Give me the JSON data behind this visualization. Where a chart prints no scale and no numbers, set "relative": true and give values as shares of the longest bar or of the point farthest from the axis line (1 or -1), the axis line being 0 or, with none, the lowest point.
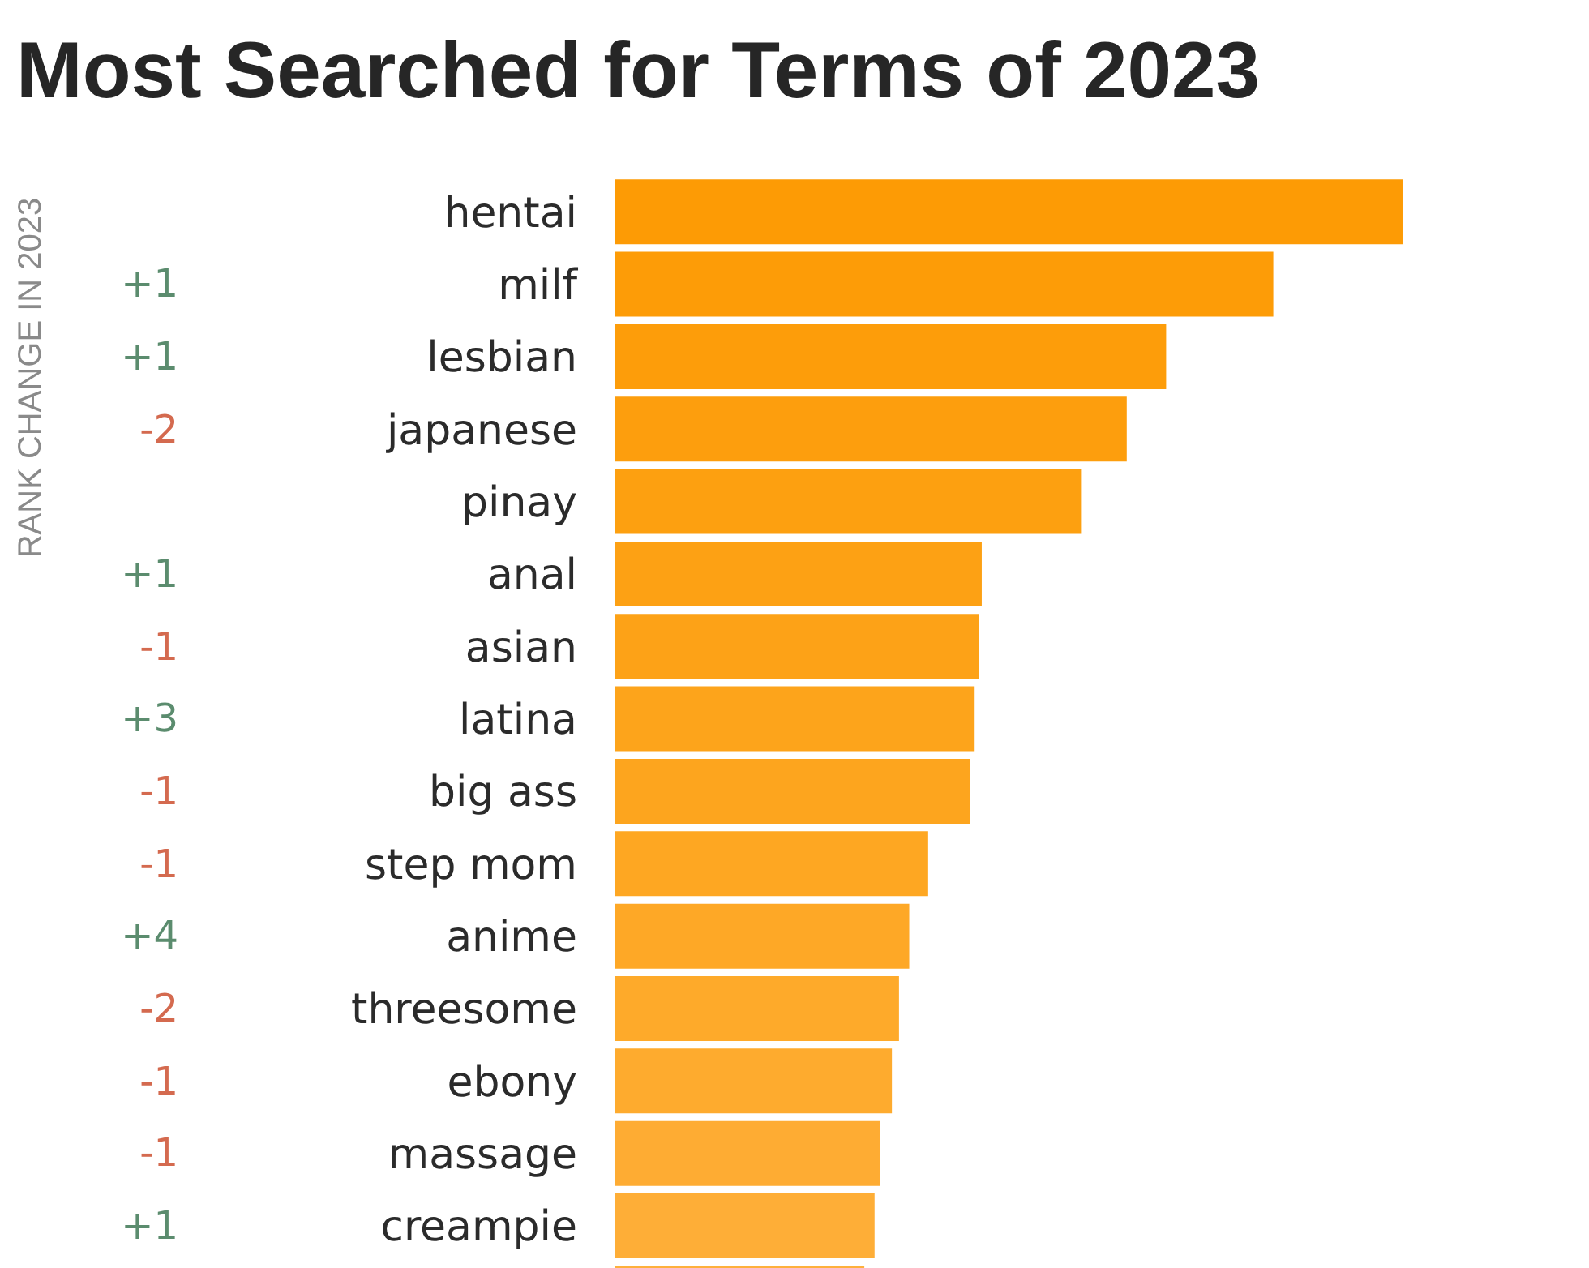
{
  "chart_data": {
    "type": "bar",
    "orientation": "horizontal",
    "relative": true,
    "title": "Most Searched for Terms of 2023",
    "categories": [
      "hentai",
      "milf",
      "lesbian",
      "japanese",
      "pinay",
      "anal",
      "asian",
      "latina",
      "big ass",
      "step mom",
      "anime",
      "threesome",
      "ebony",
      "massage",
      "creampie",
      null
    ],
    "values": [
      1,
      0.836,
      0.7,
      0.65,
      0.593,
      0.466,
      0.462,
      0.457,
      0.451,
      0.398,
      0.374,
      0.361,
      0.352,
      0.337,
      0.33,
      0.317
    ],
    "colors": [
      "#fd9b05",
      "#fd9c07",
      "#fd9d0a",
      "#fd9e0d",
      "#fda010",
      "#fda114",
      "#fda217",
      "#fda41b",
      "#fda51e",
      "#fea722",
      "#fea826",
      "#feaa2a",
      "#feab2e",
      "#feac33",
      "#feae37",
      "#feb03b"
    ],
    "annotations": [
      "RANK CHANGE IN 2023",
      null,
      "+1",
      "+1",
      "-2",
      null,
      "+1",
      "-1",
      "+3",
      "-1",
      "-1",
      "+4",
      "-2",
      "-1",
      "-1",
      "+1"
    ]
  }
}
